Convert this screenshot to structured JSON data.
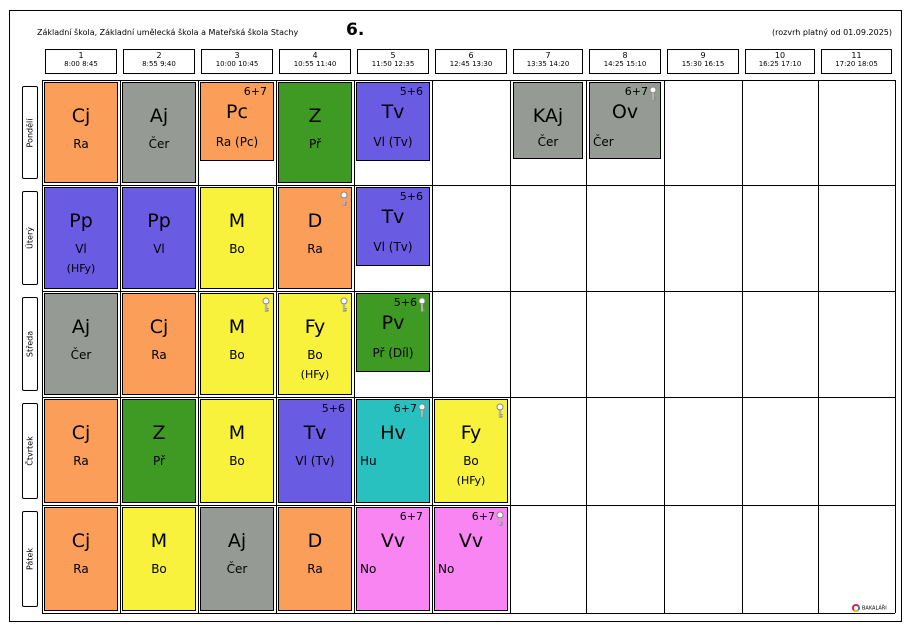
{
  "header": {
    "school": "Základní škola, Základní umělecká škola a Mateřská škola Stachy",
    "class_name": "6.",
    "validity": "(rozvrh platný od 01.09.2025)"
  },
  "periods": [
    {
      "num": "1",
      "time": "8:00  8:45"
    },
    {
      "num": "2",
      "time": "8:55  9:40"
    },
    {
      "num": "3",
      "time": "10:00 10:45"
    },
    {
      "num": "4",
      "time": "10:55 11:40"
    },
    {
      "num": "5",
      "time": "11:50 12:35"
    },
    {
      "num": "6",
      "time": "12:45 13:30"
    },
    {
      "num": "7",
      "time": "13:35 14:20"
    },
    {
      "num": "8",
      "time": "14:25 15:10"
    },
    {
      "num": "9",
      "time": "15:30 16:15"
    },
    {
      "num": "10",
      "time": "16:25 17:10"
    },
    {
      "num": "11",
      "time": "17:20 18:05"
    }
  ],
  "days": [
    "Pondělí",
    "Úterý",
    "Středa",
    "Čtvrtek",
    "Pátek"
  ],
  "colors": {
    "orange": "#fb9e5a",
    "gray": "#959a94",
    "green": "#3f9a24",
    "purple": "#6a5ce2",
    "yellow": "#f8f23c",
    "teal": "#29c0c0",
    "pink": "#f985f2"
  },
  "lessons": [
    {
      "day": 0,
      "period": 0,
      "subject": "Cj",
      "teacher": "Ra",
      "color": "orange"
    },
    {
      "day": 0,
      "period": 1,
      "subject": "Aj",
      "teacher": "Čer",
      "color": "gray"
    },
    {
      "day": 0,
      "period": 2,
      "subject": "Pc",
      "teacher": "Ra  (Pc)",
      "group": "6+7",
      "color": "orange",
      "half": true
    },
    {
      "day": 0,
      "period": 3,
      "subject": "Z",
      "teacher": "Př",
      "color": "green"
    },
    {
      "day": 0,
      "period": 4,
      "subject": "Tv",
      "teacher": "Vl  (Tv)",
      "group": "5+6",
      "color": "purple",
      "half": true
    },
    {
      "day": 0,
      "period": 6,
      "subject": "KAj",
      "teacher": "Čer",
      "color": "gray",
      "inset": true
    },
    {
      "day": 0,
      "period": 7,
      "subject": "Ov",
      "teacher": "Čer",
      "group": "6+7",
      "color": "gray",
      "inset": true,
      "key": true,
      "teacher_left": true
    },
    {
      "day": 1,
      "period": 0,
      "subject": "Pp",
      "teacher": "Vl",
      "extra": "(HFy)",
      "color": "purple"
    },
    {
      "day": 1,
      "period": 1,
      "subject": "Pp",
      "teacher": "Vl",
      "color": "purple"
    },
    {
      "day": 1,
      "period": 2,
      "subject": "M",
      "teacher": "Bo",
      "color": "yellow"
    },
    {
      "day": 1,
      "period": 3,
      "subject": "D",
      "teacher": "Ra",
      "color": "orange",
      "key": true
    },
    {
      "day": 1,
      "period": 4,
      "subject": "Tv",
      "teacher": "Vl  (Tv)",
      "group": "5+6",
      "color": "purple",
      "half": true
    },
    {
      "day": 2,
      "period": 0,
      "subject": "Aj",
      "teacher": "Čer",
      "color": "gray"
    },
    {
      "day": 2,
      "period": 1,
      "subject": "Cj",
      "teacher": "Ra",
      "color": "orange"
    },
    {
      "day": 2,
      "period": 2,
      "subject": "M",
      "teacher": "Bo",
      "color": "yellow",
      "key": true
    },
    {
      "day": 2,
      "period": 3,
      "subject": "Fy",
      "teacher": "Bo",
      "extra": "(HFy)",
      "color": "yellow",
      "key": true
    },
    {
      "day": 2,
      "period": 4,
      "subject": "Pv",
      "teacher": "Př  (Díl)",
      "group": "5+6",
      "color": "green",
      "half": true,
      "key": true
    },
    {
      "day": 3,
      "period": 0,
      "subject": "Cj",
      "teacher": "Ra",
      "color": "orange"
    },
    {
      "day": 3,
      "period": 1,
      "subject": "Z",
      "teacher": "Př",
      "color": "green"
    },
    {
      "day": 3,
      "period": 2,
      "subject": "M",
      "teacher": "Bo",
      "color": "yellow"
    },
    {
      "day": 3,
      "period": 3,
      "subject": "Tv",
      "teacher": "Vl  (Tv)",
      "group": "5+6",
      "color": "purple"
    },
    {
      "day": 3,
      "period": 4,
      "subject": "Hv",
      "teacher": "Hu",
      "group": "6+7",
      "color": "teal",
      "key": true,
      "teacher_left": true
    },
    {
      "day": 3,
      "period": 5,
      "subject": "Fy",
      "teacher": "Bo",
      "extra": "(HFy)",
      "color": "yellow",
      "key": true
    },
    {
      "day": 4,
      "period": 0,
      "subject": "Cj",
      "teacher": "Ra",
      "color": "orange"
    },
    {
      "day": 4,
      "period": 1,
      "subject": "M",
      "teacher": "Bo",
      "color": "yellow"
    },
    {
      "day": 4,
      "period": 2,
      "subject": "Aj",
      "teacher": "Čer",
      "color": "gray"
    },
    {
      "day": 4,
      "period": 3,
      "subject": "D",
      "teacher": "Ra",
      "color": "orange"
    },
    {
      "day": 4,
      "period": 4,
      "subject": "Vv",
      "teacher": "No",
      "group": "6+7",
      "color": "pink",
      "teacher_left": true
    },
    {
      "day": 4,
      "period": 5,
      "subject": "Vv",
      "teacher": "No",
      "group": "6+7",
      "color": "pink",
      "key": true,
      "teacher_left": true
    }
  ],
  "logo": "BAKALÁŘI"
}
